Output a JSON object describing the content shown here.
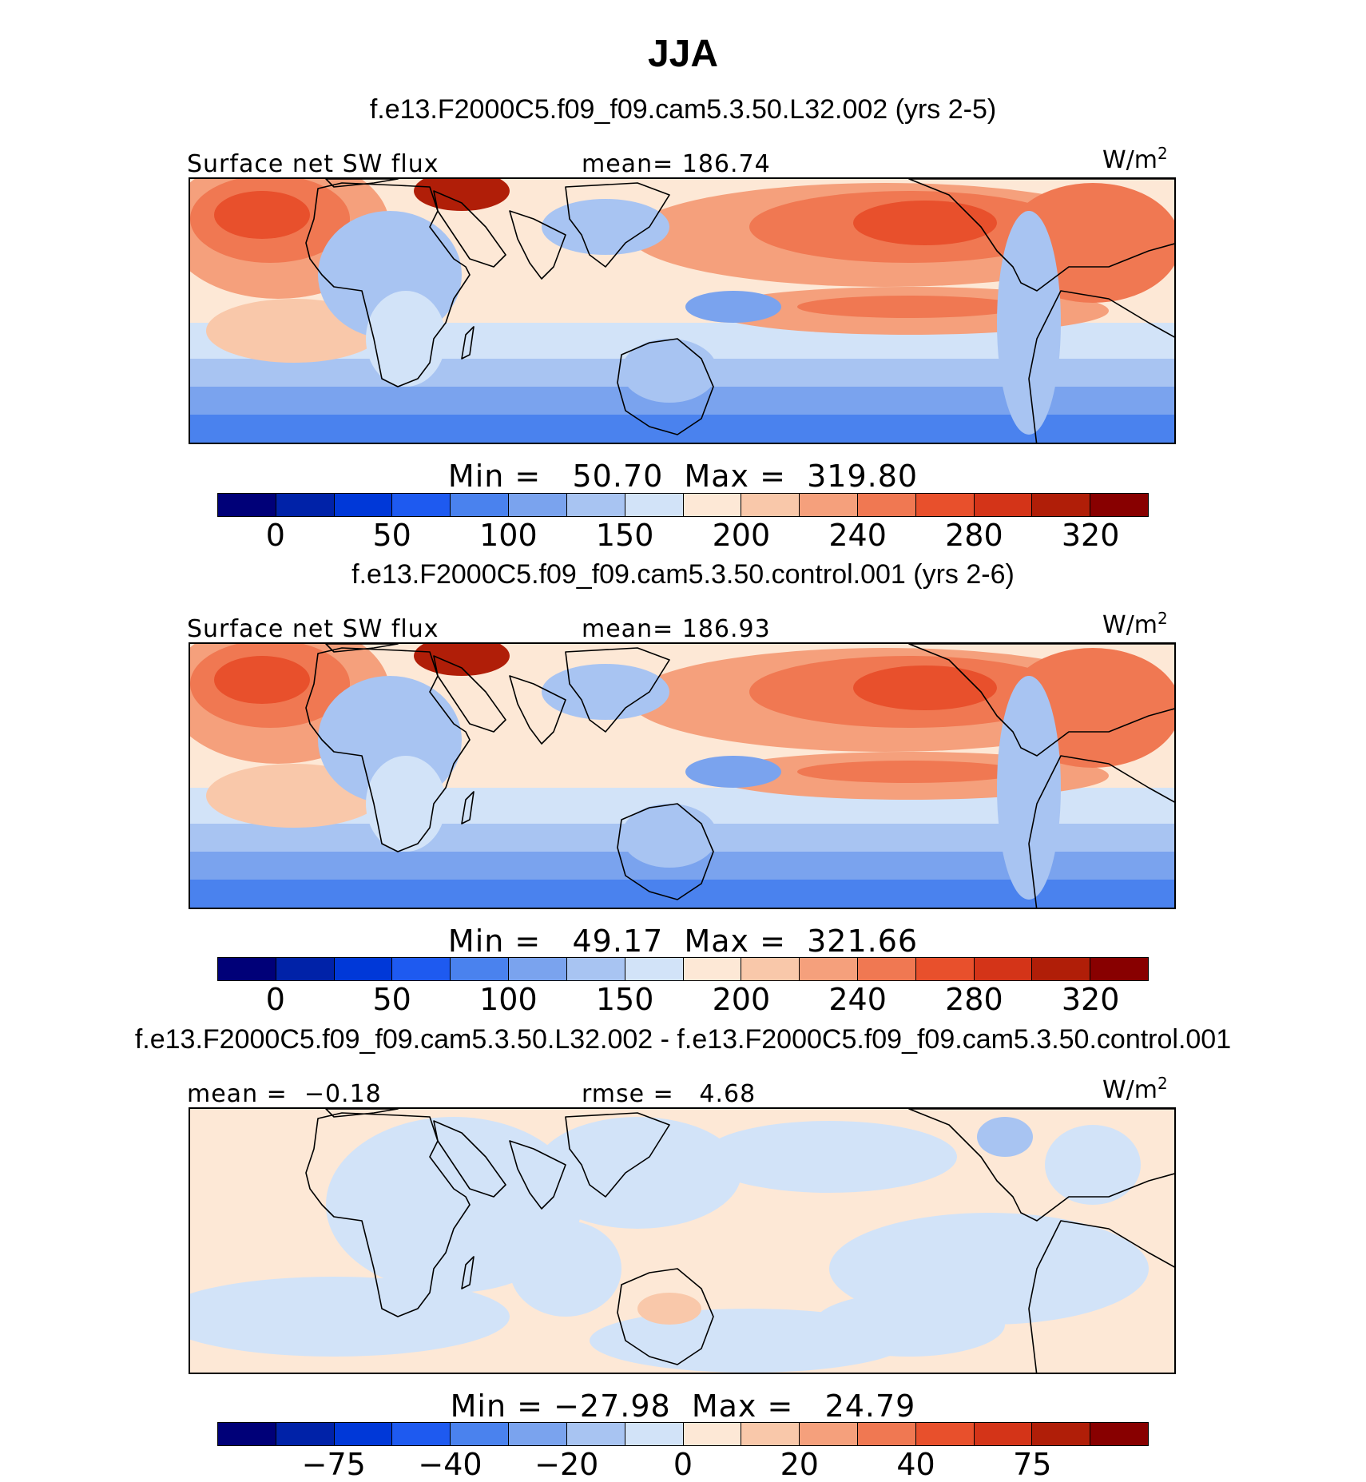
{
  "title": "JJA",
  "panels": [
    {
      "case": "f.e13.F2000C5.f09_f09.cam5.3.50.L32.002 (yrs 2-5)",
      "left_label": "Surface net SW flux",
      "center_label": "mean= 186.74",
      "units": "W/m",
      "units_sup": "2",
      "minmax": "Min =   50.70  Max =  319.80",
      "colorbar_ticks": [
        "0",
        "50",
        "100",
        "150",
        "200",
        "240",
        "280",
        "320"
      ],
      "field": "abs"
    },
    {
      "case": "f.e13.F2000C5.f09_f09.cam5.3.50.control.001 (yrs 2-6)",
      "left_label": "Surface net SW flux",
      "center_label": "mean= 186.93",
      "units": "W/m",
      "units_sup": "2",
      "minmax": "Min =   49.17  Max =  321.66",
      "colorbar_ticks": [
        "0",
        "50",
        "100",
        "150",
        "200",
        "240",
        "280",
        "320"
      ],
      "field": "abs"
    },
    {
      "case": "f.e13.F2000C5.f09_f09.cam5.3.50.L32.002 - f.e13.F2000C5.f09_f09.cam5.3.50.control.001",
      "left_label": "mean =  −0.18",
      "center_label": "rmse =   4.68",
      "units": "W/m",
      "units_sup": "2",
      "minmax": "Min = −27.98  Max =   24.79",
      "colorbar_ticks": [
        "−75",
        "−40",
        "−20",
        "0",
        "20",
        "40",
        "75"
      ],
      "field": "diff"
    }
  ],
  "colorbar_colors": [
    "#000078",
    "#0022A8",
    "#0038D8",
    "#1E5AF0",
    "#4A82EE",
    "#7AA3EE",
    "#A8C4F2",
    "#D2E3F8",
    "#FDE8D6",
    "#F9C8AA",
    "#F5A07C",
    "#F07852",
    "#E8502C",
    "#D43418",
    "#B01E08",
    "#880000"
  ]
}
